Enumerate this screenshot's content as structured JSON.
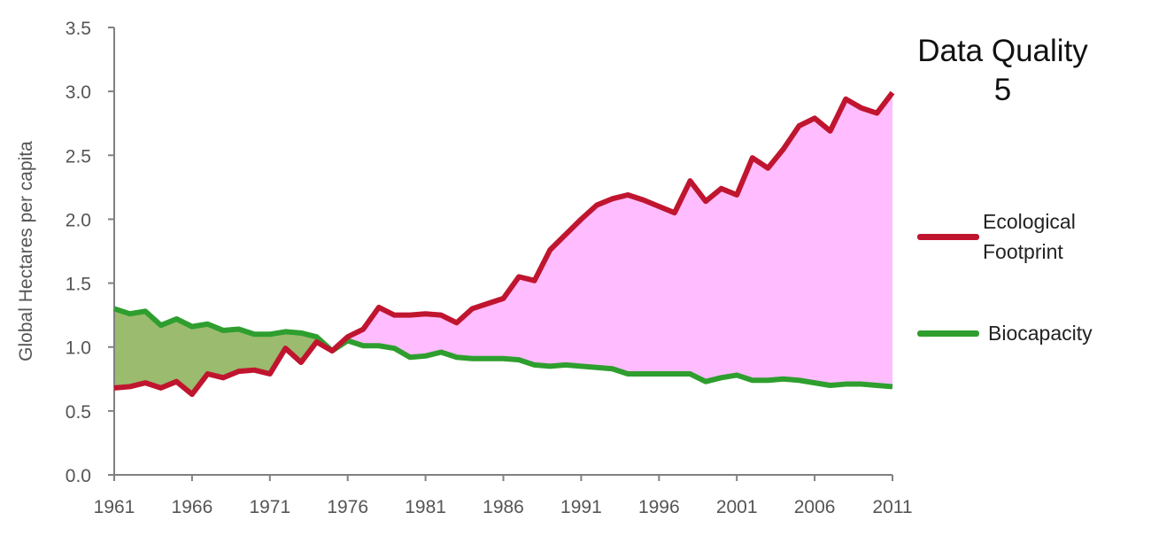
{
  "chart_data": {
    "type": "line",
    "ylabel": "Global Hectares per capita",
    "xlabel": "",
    "ylim": [
      0,
      3.5
    ],
    "xlim": [
      1961,
      2011
    ],
    "y_ticks": [
      "0.0",
      "0.5",
      "1.0",
      "1.5",
      "2.0",
      "2.5",
      "3.0",
      "3.5"
    ],
    "x_ticks": [
      "1961",
      "1966",
      "1971",
      "1976",
      "1981",
      "1986",
      "1991",
      "1996",
      "2001",
      "2006",
      "2011"
    ],
    "grid": false,
    "legend_position": "right",
    "x": [
      1961,
      1962,
      1963,
      1964,
      1965,
      1966,
      1967,
      1968,
      1969,
      1970,
      1971,
      1972,
      1973,
      1974,
      1975,
      1976,
      1977,
      1978,
      1979,
      1980,
      1981,
      1982,
      1983,
      1984,
      1985,
      1986,
      1987,
      1988,
      1989,
      1990,
      1991,
      1992,
      1993,
      1994,
      1995,
      1996,
      1997,
      1998,
      1999,
      2000,
      2001,
      2002,
      2003,
      2004,
      2005,
      2006,
      2007,
      2008,
      2009,
      2010,
      2011
    ],
    "series": [
      {
        "name": "Ecological Footprint",
        "color": "#c0152f",
        "values": [
          0.68,
          0.69,
          0.72,
          0.68,
          0.73,
          0.63,
          0.79,
          0.76,
          0.81,
          0.82,
          0.79,
          0.99,
          0.88,
          1.04,
          0.97,
          1.08,
          1.14,
          1.31,
          1.25,
          1.25,
          1.26,
          1.25,
          1.19,
          1.3,
          1.34,
          1.38,
          1.55,
          1.52,
          1.76,
          1.88,
          2.0,
          2.11,
          2.16,
          2.19,
          2.15,
          2.1,
          2.05,
          2.3,
          2.14,
          2.24,
          2.19,
          2.48,
          2.4,
          2.55,
          2.73,
          2.79,
          2.69,
          2.94,
          2.87,
          2.83,
          2.99
        ]
      },
      {
        "name": "Biocapacity",
        "color": "#2e9e2e",
        "values": [
          1.3,
          1.26,
          1.28,
          1.17,
          1.22,
          1.16,
          1.18,
          1.13,
          1.14,
          1.1,
          1.1,
          1.12,
          1.11,
          1.08,
          0.97,
          1.05,
          1.01,
          1.01,
          0.99,
          0.92,
          0.93,
          0.96,
          0.92,
          0.91,
          0.91,
          0.91,
          0.9,
          0.86,
          0.85,
          0.86,
          0.85,
          0.84,
          0.83,
          0.79,
          0.79,
          0.79,
          0.79,
          0.79,
          0.73,
          0.76,
          0.78,
          0.74,
          0.74,
          0.75,
          0.74,
          0.72,
          0.7,
          0.71,
          0.71,
          0.7,
          0.69
        ]
      }
    ],
    "fill_colors": {
      "reserve": "#9bbb6e",
      "deficit": "#ffbcff"
    },
    "annotation": {
      "line1": "Data Quality",
      "line2": "5"
    },
    "legend_labels": {
      "ecological_line1": "Ecological",
      "ecological_line2": "Footprint",
      "biocapacity": "Biocapacity"
    }
  }
}
